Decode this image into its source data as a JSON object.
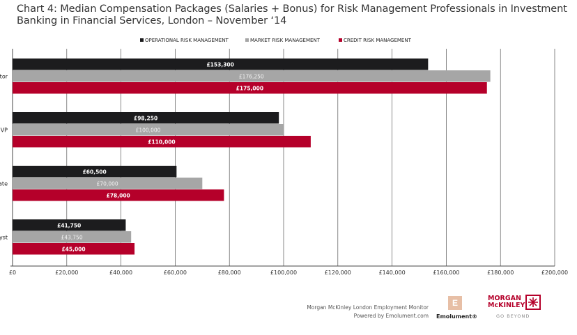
{
  "chart_data": {
    "type": "bar",
    "orientation": "horizontal",
    "title": "Chart 4: Median Compensation Packages (Salaries + Bonus) for Risk Management Professionals in Investment Banking in Financial Services, London – November ‘14",
    "categories": [
      "ctor",
      "VP",
      "ate",
      "yst"
    ],
    "series": [
      {
        "name": "OPERATIONAL RISK MANAGEMENT",
        "color": "#1c1c1e",
        "values": [
          153300,
          98250,
          60500,
          41750
        ],
        "labels": [
          "£153,300",
          "£98,250",
          "£60,500",
          "£41,750"
        ],
        "label_color": "#ffffff"
      },
      {
        "name": "MARKET RISK MANAGEMENT",
        "color": "#a6a6a6",
        "values": [
          176250,
          100000,
          70000,
          43750
        ],
        "labels": [
          "£176,250",
          "£100,000",
          "£70,000",
          "£43,750"
        ],
        "label_color": "#f2f2f2"
      },
      {
        "name": "CREDIT RISK MANAGEMENT",
        "color": "#b5002a",
        "values": [
          175000,
          110000,
          78000,
          45000
        ],
        "labels": [
          "£175,000",
          "£110,000",
          "£78,000",
          "£45,000"
        ],
        "label_color": "#ffffff"
      }
    ],
    "xlim": [
      0,
      200000
    ],
    "xticks": [
      "£0",
      "£20,000",
      "£40,000",
      "£60,000",
      "£80,000",
      "£100,000",
      "£120,000",
      "£140,000",
      "£160,000",
      "£180,000",
      "£200,000"
    ],
    "grid": true,
    "legend_position": "top"
  },
  "footer": {
    "line1": "Morgan McKinley London Employment Monitor",
    "line2": "Powered by Emolument.com",
    "emolument_logo": "Emolument®",
    "emolument_icon": "E",
    "mm_logo_line1": "MORGAN",
    "mm_logo_line2": "McKINLEY",
    "mm_tagline": "GO BEYOND"
  }
}
